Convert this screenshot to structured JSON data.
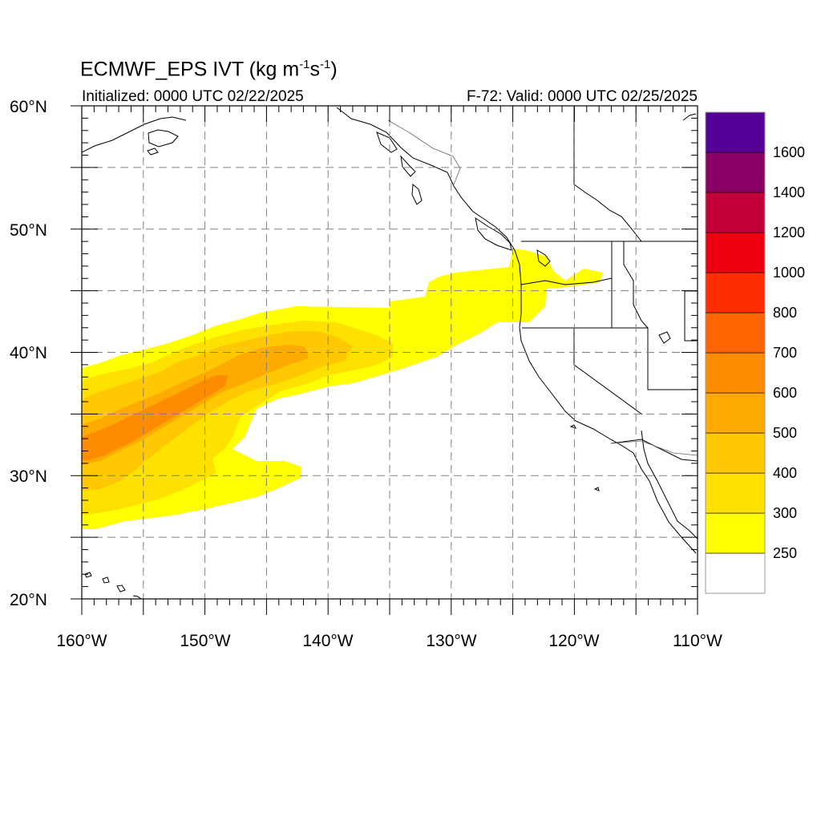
{
  "header": {
    "title_main": "ECMWF_EPS IVT (kg m",
    "title_exp1": "-1",
    "title_mid": "s",
    "title_exp2": "-1",
    "title_end": ")",
    "initialized": "Initialized: 0000 UTC 02/22/2025",
    "valid": "F-72: Valid: 0000 UTC 02/25/2025"
  },
  "map": {
    "projection": "cylindrical equidistant",
    "lon_range": [
      -160,
      -110
    ],
    "lat_range": [
      20,
      60
    ],
    "gridlines": "dashed, every 5 degrees",
    "lat_labels": [
      "20°N",
      "30°N",
      "40°N",
      "50°N",
      "60°N"
    ],
    "lon_labels": [
      "160°W",
      "150°W",
      "140°W",
      "130°W",
      "120°W",
      "110°W"
    ]
  },
  "colorbar": {
    "levels": [
      "250",
      "300",
      "400",
      "500",
      "600",
      "700",
      "800",
      "1000",
      "1200",
      "1400",
      "1600"
    ],
    "colors": [
      "#ffffff",
      "#ffff00",
      "#ffe100",
      "#ffc800",
      "#ffaa00",
      "#ff8c00",
      "#ff6400",
      "#ff2d00",
      "#ee0010",
      "#c4003a",
      "#8a0064",
      "#550096"
    ]
  },
  "chart_data": {
    "type": "heatmap",
    "variable": "Integrated Vapor Transport (kg m-1 s-1)",
    "approximate_features": [
      {
        "name": "atmospheric river core",
        "lon": [
          -160,
          -140
        ],
        "lat": [
          31,
          39
        ],
        "ivt_range": "400-600"
      },
      {
        "name": "atmospheric river tail",
        "lon": [
          -140,
          -124
        ],
        "lat": [
          40,
          46
        ],
        "ivt_range": "250-400"
      },
      {
        "name": "landfall Pacific Northwest",
        "lon": [
          -125,
          -118
        ],
        "lat": [
          43,
          48
        ],
        "ivt_range": "250-400"
      }
    ]
  }
}
